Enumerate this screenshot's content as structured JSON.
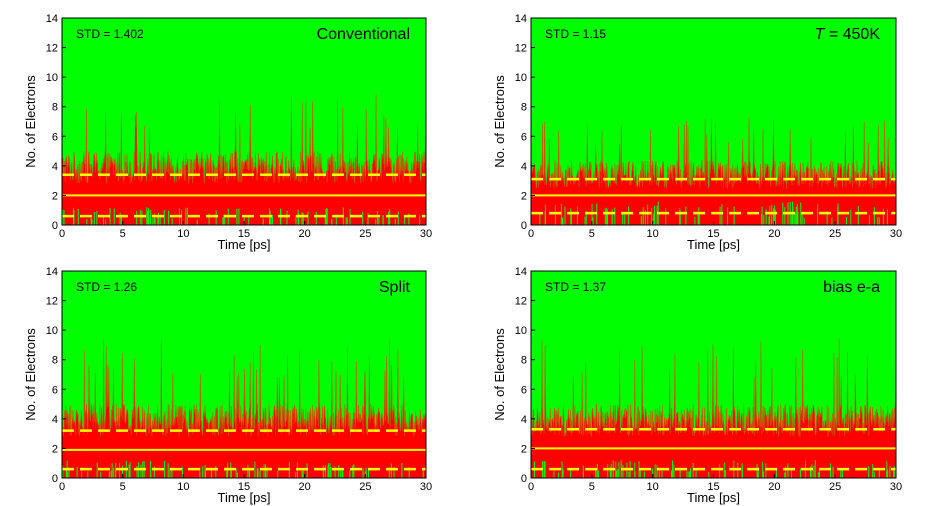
{
  "chart_data": [
    {
      "type": "area",
      "title": "Conventional",
      "title_italic_prefix": "",
      "annotation": "STD = 1.402",
      "xlabel": "Time [ps]",
      "ylabel": "No. of Electrons",
      "xlim": [
        0,
        30
      ],
      "ylim": [
        0,
        14
      ],
      "xticks": [
        0,
        5,
        10,
        15,
        20,
        25,
        30
      ],
      "yticks": [
        0,
        2,
        4,
        6,
        8,
        10,
        12,
        14
      ],
      "mean": 2.0,
      "band": [
        0.6,
        3.4
      ],
      "typical_count": 4,
      "max_count": 9,
      "background_color": "#00ff00",
      "signal_color": "#ff0000",
      "spike_color": "#cc5500",
      "line_color": "#ffff00",
      "grid": false
    },
    {
      "type": "area",
      "title": " =  450K",
      "title_italic_prefix": "T",
      "annotation": "STD = 1.15",
      "xlabel": "Time [ps]",
      "ylabel": "No. of Electrons",
      "xlim": [
        0,
        30
      ],
      "ylim": [
        0,
        14
      ],
      "xticks": [
        0,
        5,
        10,
        15,
        20,
        25,
        30
      ],
      "yticks": [
        0,
        2,
        4,
        6,
        8,
        10,
        12,
        14
      ],
      "mean": 2.0,
      "band": [
        0.8,
        3.1
      ],
      "typical_count": 3.5,
      "max_count": 7.3,
      "background_color": "#00ff00",
      "signal_color": "#ff0000",
      "spike_color": "#cc5500",
      "line_color": "#ffff00",
      "grid": false
    },
    {
      "type": "area",
      "title": "Split",
      "title_italic_prefix": "",
      "annotation": "STD = 1.26",
      "xlabel": "Time [ps]",
      "ylabel": "No. of Electrons",
      "xlim": [
        0,
        30
      ],
      "ylim": [
        0,
        14
      ],
      "xticks": [
        0,
        5,
        10,
        15,
        20,
        25,
        30
      ],
      "yticks": [
        0,
        2,
        4,
        6,
        8,
        10,
        12,
        14
      ],
      "mean": 1.9,
      "band": [
        0.6,
        3.2
      ],
      "typical_count": 4,
      "max_count": 9.5,
      "background_color": "#00ff00",
      "signal_color": "#ff0000",
      "spike_color": "#cc5500",
      "line_color": "#ffff00",
      "grid": false
    },
    {
      "type": "area",
      "title": "bias e-a",
      "title_italic_prefix": "",
      "annotation": "STD = 1.37",
      "xlabel": "Time [ps]",
      "ylabel": "No. of Electrons",
      "xlim": [
        0,
        30
      ],
      "ylim": [
        0,
        14
      ],
      "xticks": [
        0,
        5,
        10,
        15,
        20,
        25,
        30
      ],
      "yticks": [
        0,
        2,
        4,
        6,
        8,
        10,
        12,
        14
      ],
      "mean": 2.0,
      "band": [
        0.6,
        3.3
      ],
      "typical_count": 4,
      "max_count": 9.5,
      "background_color": "#00ff00",
      "signal_color": "#ff0000",
      "spike_color": "#cc5500",
      "line_color": "#ffff00",
      "grid": false
    }
  ]
}
